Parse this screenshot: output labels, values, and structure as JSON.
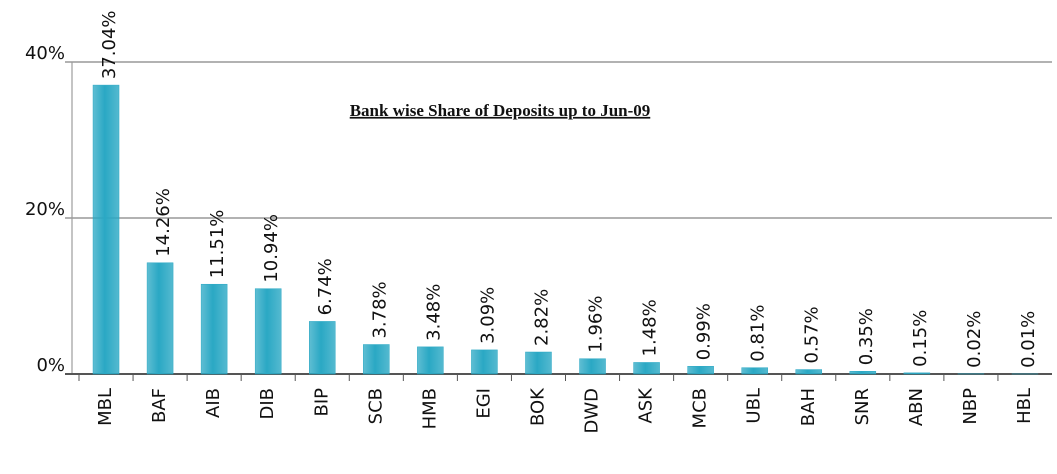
{
  "chart_data": {
    "type": "bar",
    "title": "Bank wise Share of Deposits up to Jun-09",
    "categories": [
      "MBL",
      "BAF",
      "AIB",
      "DIB",
      "BIP",
      "SCB",
      "HMB",
      "EGI",
      "BOK",
      "DWD",
      "ASK",
      "MCB",
      "UBL",
      "BAH",
      "SNR",
      "ABN",
      "NBP",
      "HBL"
    ],
    "values": [
      37.04,
      14.26,
      11.51,
      10.94,
      6.74,
      3.78,
      3.48,
      3.09,
      2.82,
      1.96,
      1.48,
      0.99,
      0.81,
      0.57,
      0.35,
      0.15,
      0.02,
      0.01
    ],
    "value_labels": [
      "37.04%",
      "14.26%",
      "11.51%",
      "10.94%",
      "6.74%",
      "3.78%",
      "3.48%",
      "3.09%",
      "2.82%",
      "1.96%",
      "1.48%",
      "0.99%",
      "0.81%",
      "0.57%",
      "0.35%",
      "0.15%",
      "0.02%",
      "0.01%"
    ],
    "color": "#2aa8c4",
    "ylim": [
      0,
      40
    ],
    "yticks": [
      {
        "value": 0,
        "label": "0%"
      },
      {
        "value": 20,
        "label": "20%"
      },
      {
        "value": 40,
        "label": "40%"
      }
    ],
    "grid": true
  }
}
